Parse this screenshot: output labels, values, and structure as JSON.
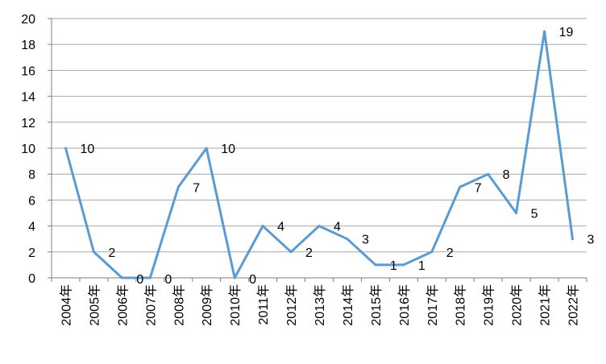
{
  "chart_data": {
    "type": "line",
    "title": "",
    "xlabel": "",
    "ylabel": "",
    "categories": [
      "2004年",
      "2005年",
      "2006年",
      "2007年",
      "2008年",
      "2009年",
      "2010年",
      "2011年",
      "2012年",
      "2013年",
      "2014年",
      "2015年",
      "2016年",
      "2017年",
      "2018年",
      "2019年",
      "2020年",
      "2021年",
      "2022年"
    ],
    "series": [
      {
        "values": [
          10,
          2,
          0,
          0,
          7,
          10,
          0,
          4,
          2,
          4,
          3,
          1,
          1,
          2,
          7,
          8,
          5,
          19,
          3
        ],
        "color": "#5b9bd5"
      }
    ],
    "ylim": [
      0,
      20
    ],
    "yticks": [
      0,
      2,
      4,
      6,
      8,
      10,
      12,
      14,
      16,
      18,
      20
    ],
    "grid": true,
    "legend": "none",
    "data_labels": true
  }
}
